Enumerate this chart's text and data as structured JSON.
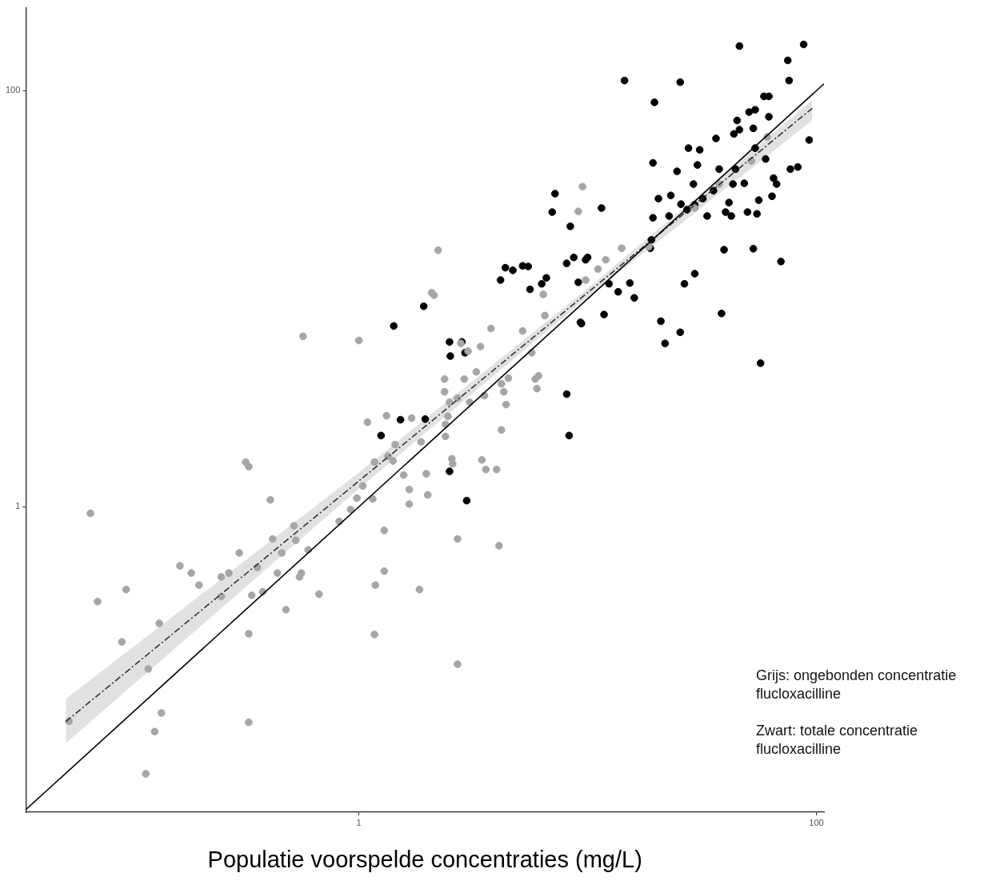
{
  "chart_data": {
    "type": "scatter",
    "xlabel": "Populatie voorspelde concentraties (mg/L)",
    "log": "xy",
    "grid": false,
    "legend": false,
    "xlim": [
      0.035,
      108
    ],
    "ylim": [
      0.034,
      250
    ],
    "xticks": [
      1,
      100
    ],
    "yticks": [
      1,
      100
    ],
    "annotations": [
      "Grijs: ongebonden concentratie flucloxacilline",
      "Zwart: totale concentratie flucloxacilline"
    ],
    "series": [
      {
        "type": "line",
        "color": "#000000",
        "line_style": "solid",
        "x": [
          0.035,
          108
        ],
        "values": [
          0.035,
          108
        ]
      },
      {
        "type": "line",
        "color": "#333333",
        "line_style": "dashed",
        "x": [
          0.0523,
          1,
          10,
          96
        ],
        "values": [
          0.0927,
          1.33,
          10.7,
          82.4
        ],
        "lower": [
          0.073,
          1.22,
          10.2,
          72
        ],
        "upper": [
          0.119,
          1.46,
          11.2,
          90
        ]
      },
      {
        "color": "#a6a6a6",
        "marker": "circle",
        "x": [
          0.067,
          0.072,
          0.096,
          0.092,
          0.134,
          0.12,
          0.128,
          0.137,
          0.117,
          0.054,
          0.165,
          0.185,
          0.2,
          0.25,
          0.27,
          0.25,
          0.3,
          0.33,
          0.32,
          0.33,
          0.33,
          0.34,
          0.36,
          0.38,
          0.41,
          0.42,
          0.44,
          0.46,
          0.48,
          0.52,
          0.53,
          0.55,
          0.56,
          0.6,
          0.67,
          0.57,
          1.0,
          0.82,
          0.92,
          0.98,
          1.04,
          1.09,
          1.15,
          1.17,
          1.18,
          1.17,
          1.29,
          1.29,
          1.32,
          1.34,
          1.41,
          1.44,
          1.57,
          1.66,
          1.66,
          1.7,
          1.84,
          1.87,
          1.97,
          2.0,
          2.08,
          2.13,
          2.22,
          2.37,
          2.37,
          2.39,
          2.39,
          2.45,
          2.49,
          2.55,
          2.57,
          2.7,
          2.7,
          2.79,
          2.89,
          3.0,
          3.05,
          3.26,
          3.4,
          3.45,
          3.54,
          3.59,
          3.78,
          4.0,
          4.1,
          4.2,
          4.2,
          4.3,
          4.4,
          4.5,
          5.2,
          5.7,
          5.9,
          6.0,
          6.1,
          6.4,
          6.5,
          9.1,
          9.5,
          9.8,
          11.1,
          2.7,
          12.0,
          14.1,
          18.5,
          29.4,
          37.6,
          52,
          61
        ],
        "values": [
          0.93,
          0.35,
          0.4,
          0.224,
          0.275,
          0.166,
          0.083,
          0.102,
          0.052,
          0.093,
          0.52,
          0.48,
          0.42,
          0.46,
          0.48,
          0.37,
          0.6,
          1.56,
          1.64,
          0.092,
          0.245,
          0.375,
          0.51,
          0.39,
          1.08,
          0.7,
          0.48,
          0.6,
          0.32,
          0.81,
          0.69,
          0.46,
          0.48,
          0.62,
          0.38,
          6.6,
          6.3,
          0.85,
          0.97,
          1.1,
          1.26,
          2.55,
          1.09,
          1.64,
          0.42,
          0.243,
          0.77,
          0.49,
          2.74,
          1.75,
          1.66,
          1.99,
          1.42,
          1.03,
          1.21,
          2.67,
          0.4,
          2.05,
          1.44,
          1.14,
          10.7,
          10.4,
          17.1,
          4.11,
          3.57,
          2.49,
          2.18,
          2.72,
          3.18,
          1.7,
          1.61,
          0.7,
          3.33,
          6.1,
          4.11,
          5.6,
          3.18,
          4.45,
          5.9,
          1.68,
          3.42,
          1.51,
          7.2,
          1.51,
          0.65,
          3.9,
          2.34,
          3.57,
          3.1,
          4.15,
          7.0,
          5.5,
          4.11,
          3.7,
          4.26,
          10.5,
          8.3,
          26.3,
          34.6,
          12.3,
          13.9,
          0.175,
          15.4,
          17.5,
          17.8,
          27.3,
          35.6,
          46,
          60
        ]
      },
      {
        "color": "#000000",
        "marker": "circle",
        "x": [
          1.42,
          1.92,
          2.49,
          2.82,
          2.91,
          2.51,
          4.16,
          4.37,
          4.71,
          5.2,
          5.5,
          5.6,
          6.3,
          6.6,
          7.0,
          7.2,
          8.1,
          8.1,
          8.3,
          8.4,
          8.7,
          9.1,
          9.3,
          9.4,
          9.8,
          10.0,
          11.5,
          11.8,
          12.4,
          13.6,
          15.3,
          16.0,
          14.5,
          18.8,
          19.0,
          19.3,
          19.3,
          19.6,
          20.4,
          20.9,
          21.8,
          22.7,
          23.1,
          24.6,
          25.4,
          25.6,
          25.4,
          26.5,
          27.2,
          27.6,
          29.0,
          29.4,
          29.4,
          30.2,
          30.9,
          31.9,
          33.3,
          35.5,
          36.4,
          37.6,
          38.5,
          39.5,
          40.1,
          41.5,
          42.5,
          43.2,
          44.3,
          46.1,
          45.0,
          48.4,
          46.1,
          50.8,
          50.0,
          53,
          54,
          55,
          56,
          57,
          59,
          60,
          62,
          62,
          64,
          65,
          67,
          70,
          75,
          76,
          77,
          83,
          88,
          93,
          53,
          54,
          43.6,
          2.49,
          2.96,
          1.25,
          1.52,
          1.95
        ],
        "values": [
          7.4,
          9.2,
          6.2,
          6.2,
          5.5,
          5.3,
          12.3,
          14.1,
          13.7,
          14.4,
          14.3,
          11.1,
          11.8,
          12.6,
          26.1,
          32.0,
          14.8,
          3.48,
          2.2,
          22.3,
          15.8,
          12.0,
          7.7,
          7.6,
          15.4,
          15.8,
          27.3,
          8.4,
          11.8,
          10.8,
          11.9,
          10.1,
          112,
          17.5,
          19.2,
          24.5,
          45,
          88,
          30.3,
          7.8,
          6.1,
          25.0,
          31.4,
          41,
          110,
          28.5,
          6.9,
          11.8,
          26.8,
          53,
          35.6,
          13.2,
          28.3,
          44,
          52,
          30.3,
          25.0,
          33.1,
          59,
          42,
          8.5,
          17.2,
          26.1,
          29.0,
          25.0,
          35.6,
          42,
          164,
          72,
          35.9,
          65,
          79,
          26.1,
          17.4,
          81,
          25.6,
          29.8,
          4.9,
          94,
          47,
          94,
          75,
          31.1,
          38,
          35.6,
          15.1,
          140,
          112,
          42,
          43,
          167,
          58,
          66,
          53,
          62,
          1.48,
          1.07,
          2.2,
          2.62,
          2.64
        ]
      }
    ]
  }
}
